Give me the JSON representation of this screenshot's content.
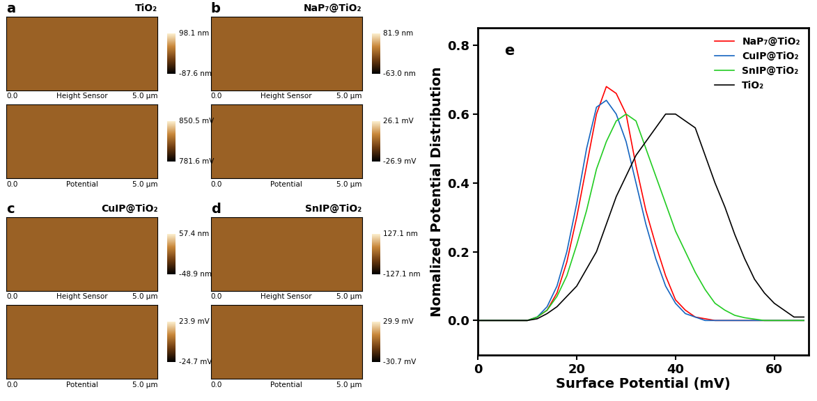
{
  "panels": [
    {
      "label": "a",
      "title": "TiO₂",
      "maps": [
        {
          "x_label": "Height Sensor",
          "x_start": "0.0",
          "x_end": "5.0 µm",
          "range": [
            {
              "value": -87.6,
              "label": "-87.6 nm"
            },
            {
              "value": 98.1,
              "label": "98.1 nm"
            }
          ]
        },
        {
          "x_label": "Potential",
          "x_start": "0.0",
          "x_end": "5.0 µm",
          "range": [
            {
              "value": 781.6,
              "label": "781.6 mV"
            },
            {
              "value": 850.5,
              "label": "850.5 mV"
            }
          ]
        }
      ]
    },
    {
      "label": "b",
      "title": "NaP₇@TiO₂",
      "maps": [
        {
          "x_label": "Height Sensor",
          "x_start": "0.0",
          "x_end": "5.0 µm",
          "range": [
            {
              "value": -63.0,
              "label": "-63.0 nm"
            },
            {
              "value": 81.9,
              "label": "81.9 nm"
            }
          ]
        },
        {
          "x_label": "Potential",
          "x_start": "0.0",
          "x_end": "5.0 µm",
          "range": [
            {
              "value": -26.9,
              "label": "-26.9 mV"
            },
            {
              "value": 26.1,
              "label": "26.1 mV"
            }
          ]
        }
      ]
    },
    {
      "label": "c",
      "title": "CuIP@TiO₂",
      "maps": [
        {
          "x_label": "Height Sensor",
          "x_start": "0.0",
          "x_end": "5.0 µm",
          "range": [
            {
              "value": -48.9,
              "label": "-48.9 nm"
            },
            {
              "value": 57.4,
              "label": "57.4 nm"
            }
          ]
        },
        {
          "x_label": "Potential",
          "x_start": "0.0",
          "x_end": "5.0 µm",
          "range": [
            {
              "value": -24.7,
              "label": "-24.7 mV"
            },
            {
              "value": 23.9,
              "label": "23.9 mV"
            }
          ]
        }
      ]
    },
    {
      "label": "d",
      "title": "SnIP@TiO₂",
      "maps": [
        {
          "x_label": "Height Sensor",
          "x_start": "0.0",
          "x_end": "5.0 µm",
          "range": [
            {
              "value": -127.1,
              "label": "-127.1 nm"
            },
            {
              "value": 127.1,
              "label": "127.1 nm"
            }
          ]
        },
        {
          "x_label": "Potential",
          "x_start": "0.0",
          "x_end": "5.0 µm",
          "range": [
            {
              "value": -30.7,
              "label": "-30.7 mV"
            },
            {
              "value": 29.9,
              "label": "29.9 mV"
            }
          ]
        }
      ]
    }
  ],
  "chart_data": {
    "type": "line",
    "title": "e",
    "x_label": "Surface Potential (mV)",
    "y_label": "Nomalized Potential Distribution",
    "x": [
      0,
      2,
      4,
      6,
      8,
      10,
      12,
      14,
      16,
      18,
      20,
      22,
      24,
      26,
      28,
      30,
      32,
      34,
      36,
      38,
      40,
      42,
      44,
      46,
      48,
      50,
      52,
      54,
      56,
      58,
      60,
      62,
      64,
      66
    ],
    "series": [
      {
        "name": "NaP₇@TiO₂",
        "color": "#ff0000",
        "values": [
          0,
          0,
          0,
          0,
          0,
          0,
          0.01,
          0.03,
          0.08,
          0.17,
          0.3,
          0.45,
          0.6,
          0.68,
          0.66,
          0.6,
          0.45,
          0.32,
          0.22,
          0.13,
          0.06,
          0.03,
          0.01,
          0.005,
          0,
          0,
          0,
          0,
          0,
          0,
          0,
          0,
          0,
          0
        ]
      },
      {
        "name": "CuIP@TiO₂",
        "color": "#1565c0",
        "values": [
          0,
          0,
          0,
          0,
          0,
          0,
          0.01,
          0.04,
          0.1,
          0.2,
          0.34,
          0.5,
          0.62,
          0.64,
          0.6,
          0.52,
          0.4,
          0.28,
          0.18,
          0.1,
          0.05,
          0.02,
          0.01,
          0,
          0,
          0,
          0,
          0,
          0,
          0,
          0,
          0,
          0,
          0
        ]
      },
      {
        "name": "SnIP@TiO₂",
        "color": "#22cc22",
        "values": [
          0,
          0,
          0,
          0,
          0,
          0,
          0.01,
          0.03,
          0.07,
          0.13,
          0.22,
          0.32,
          0.44,
          0.52,
          0.58,
          0.6,
          0.58,
          0.5,
          0.42,
          0.34,
          0.26,
          0.2,
          0.14,
          0.09,
          0.05,
          0.03,
          0.015,
          0.008,
          0.004,
          0,
          0,
          0,
          0,
          0
        ]
      },
      {
        "name": "TiO₂",
        "color": "#000000",
        "values": [
          0,
          0,
          0,
          0,
          0,
          0,
          0.005,
          0.02,
          0.04,
          0.07,
          0.1,
          0.15,
          0.2,
          0.28,
          0.36,
          0.42,
          0.48,
          0.52,
          0.56,
          0.6,
          0.6,
          0.58,
          0.56,
          0.48,
          0.4,
          0.33,
          0.25,
          0.18,
          0.12,
          0.08,
          0.05,
          0.03,
          0.01,
          0.01
        ]
      }
    ],
    "xlim": [
      0,
      67
    ],
    "ylim": [
      -0.1,
      0.85
    ],
    "xticks": [
      0,
      20,
      40,
      60
    ],
    "yticks": [
      {
        "value": 0,
        "label": "0.0"
      },
      {
        "value": 0.2,
        "label": "0.2"
      },
      {
        "value": 0.4,
        "label": "0.4"
      },
      {
        "value": 0.6,
        "label": "0.6"
      },
      {
        "value": 0.8,
        "label": "0.8"
      }
    ],
    "legend": "upper right"
  }
}
